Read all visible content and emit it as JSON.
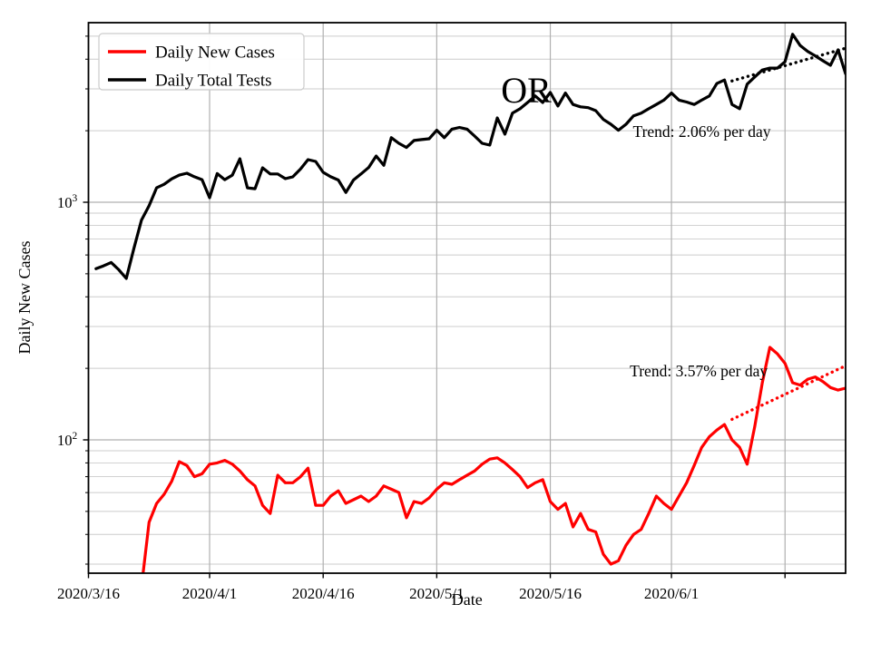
{
  "title": "OR",
  "colors": {
    "series_red": "#ff0000",
    "series_black": "#000000",
    "grid_major": "#b0b0b0",
    "grid_minor": "#cccccc",
    "axis": "#000000",
    "legend_border": "#cccccc",
    "background": "#ffffff"
  },
  "legend": {
    "entries": [
      {
        "label": "Daily New Cases",
        "color": "#ff0000"
      },
      {
        "label": "Daily Total Tests",
        "color": "#000000"
      }
    ]
  },
  "chart_data": {
    "type": "line",
    "title": "OR",
    "xlabel": "Date",
    "ylabel": "Daily New Cases",
    "y_scale": "log",
    "ylim": [
      27.5,
      5700
    ],
    "grid": "both",
    "legend_position": "upper left",
    "x_axis": {
      "max_day": 100,
      "day0_date": "2020/3/16",
      "ticks": [
        {
          "day": 0,
          "label": "2020/3/16"
        },
        {
          "day": 16,
          "label": "2020/4/1"
        },
        {
          "day": 31,
          "label": "2020/4/16"
        },
        {
          "day": 46,
          "label": "2020/5/1"
        },
        {
          "day": 61,
          "label": "2020/5/16"
        },
        {
          "day": 77,
          "label": "2020/6/1"
        },
        {
          "day": 92,
          "label": ""
        }
      ]
    },
    "y_axis": {
      "major_ticks": [
        {
          "value": 1000,
          "base": "10",
          "exponent": "3"
        },
        {
          "value": 100,
          "base": "10",
          "exponent": "2"
        }
      ],
      "minor_tick_values": [
        30,
        40,
        50,
        60,
        70,
        80,
        90,
        200,
        300,
        400,
        500,
        600,
        700,
        800,
        900,
        2000,
        3000,
        4000,
        5000
      ]
    },
    "series": [
      {
        "name": "Daily New Cases",
        "color": "#ff0000",
        "start_day": 7,
        "values": [
          24,
          45,
          54,
          59,
          67,
          81,
          78,
          70,
          72,
          79,
          80,
          82,
          79,
          74,
          68,
          64,
          53,
          49,
          71,
          66,
          66,
          70,
          76,
          53,
          53,
          58,
          61,
          54,
          56,
          58,
          55,
          58,
          64,
          62,
          60,
          47,
          55,
          54,
          57,
          62,
          66,
          65,
          68,
          71,
          74,
          79,
          83,
          84,
          80,
          75,
          70,
          63,
          66,
          68,
          55,
          51,
          54,
          43,
          49,
          42,
          41,
          33,
          30,
          31,
          36,
          40,
          42,
          49,
          58,
          54,
          51,
          58,
          66,
          78,
          93,
          103,
          110,
          116,
          100,
          93,
          79,
          114,
          174,
          245,
          230,
          210,
          174,
          170,
          180,
          184,
          176,
          166,
          162,
          165
        ]
      },
      {
        "name": "Daily Total Tests",
        "color": "#000000",
        "start_day": 1,
        "values": [
          525,
          540,
          558,
          520,
          478,
          640,
          840,
          966,
          1150,
          1190,
          1255,
          1300,
          1325,
          1280,
          1245,
          1045,
          1320,
          1245,
          1300,
          1524,
          1150,
          1140,
          1397,
          1316,
          1316,
          1257,
          1280,
          1380,
          1512,
          1485,
          1337,
          1280,
          1240,
          1100,
          1240,
          1316,
          1400,
          1565,
          1430,
          1870,
          1770,
          1700,
          1820,
          1835,
          1850,
          2010,
          1870,
          2030,
          2065,
          2030,
          1900,
          1770,
          1740,
          2265,
          1935,
          2370,
          2475,
          2630,
          2800,
          2630,
          2900,
          2540,
          2880,
          2580,
          2520,
          2500,
          2430,
          2230,
          2130,
          2010,
          2130,
          2310,
          2370,
          2475,
          2580,
          2690,
          2880,
          2690,
          2640,
          2580,
          2690,
          2800,
          3160,
          3270,
          2580,
          2475,
          3140,
          3370,
          3600,
          3670,
          3670,
          3900,
          5090,
          4570,
          4310,
          4130,
          3940,
          3770,
          4380,
          3470
        ]
      }
    ],
    "trend_lines": [
      {
        "series": "Daily Total Tests",
        "style": "dotted",
        "color": "#000000",
        "start_day": 85,
        "start_value": 3240,
        "end_day": 100,
        "end_value": 4450,
        "label": "Trend: 2.06% per day",
        "label_anchor": {
          "day": 71.9,
          "value": 1880
        }
      },
      {
        "series": "Daily New Cases",
        "style": "dotted",
        "color": "#ff0000",
        "start_day": 85,
        "start_value": 122,
        "end_day": 100,
        "end_value": 205,
        "label": "Trend: 3.57% per day",
        "label_anchor": {
          "day": 71.5,
          "value": 185
        }
      }
    ]
  }
}
